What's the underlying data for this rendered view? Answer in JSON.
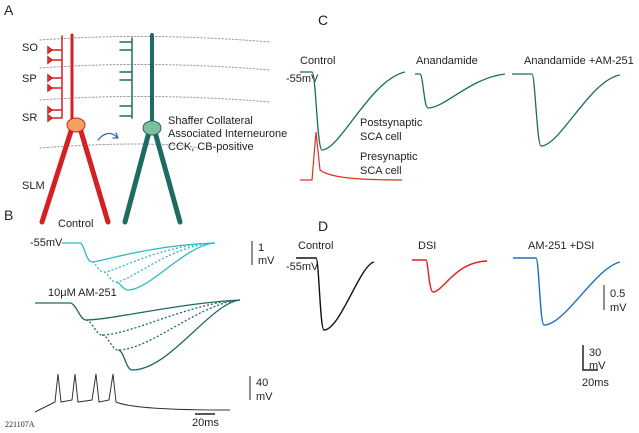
{
  "panel_a": {
    "label": "A",
    "layers": [
      "SO",
      "SP",
      "SR",
      "SLM"
    ],
    "cell_text": [
      "Shaffer Collateral",
      "Associated Interneurone",
      "CCK, CB-positive"
    ]
  },
  "panel_b": {
    "label": "B",
    "control": "Control",
    "holding": "-55mV",
    "scale_top": [
      "1",
      "mV"
    ],
    "drug": "10μM AM-251",
    "scale_mid": [
      "40",
      "mV"
    ],
    "time_scale": "20ms",
    "cell_id": "221107A"
  },
  "panel_c": {
    "label": "C",
    "conditions": [
      "Control",
      "Anandamide",
      "Anandamide +AM-251"
    ],
    "holding": "-55mV",
    "post": [
      "Postsynaptic",
      "SCA cell"
    ],
    "pre": [
      "Presynaptic",
      "SCA cell"
    ]
  },
  "panel_d": {
    "label": "D",
    "conditions": [
      "Control",
      "DSI",
      "AM-251 +DSI"
    ],
    "holding": "-55mV",
    "scale_v": [
      "0.5",
      "mV"
    ],
    "scale_spike": [
      "30",
      "mV"
    ],
    "time_scale": "20ms"
  }
}
